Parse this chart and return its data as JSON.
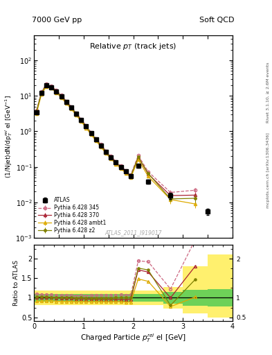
{
  "title_main": "Relative $p_{T}$ (track jets)",
  "top_left_label": "7000 GeV pp",
  "top_right_label": "Soft QCD",
  "right_label_top": "Rivet 3.1.10, ≥ 2.6M events",
  "right_label_bottom": "mcplots.cern.ch [arXiv:1306.3436]",
  "watermark": "ATLAS_2011_I919017",
  "xlabel": "Charged Particle $p^{rel}_{T}$ el [GeV]",
  "ylabel_top": "(1/Njet)dN/dp$^{rel}_{T}$ el [GeV$^{-1}$]",
  "ylabel_bottom": "Ratio to ATLAS",
  "xlim": [
    0,
    4.0
  ],
  "atlas_x": [
    0.05,
    0.15,
    0.25,
    0.35,
    0.45,
    0.55,
    0.65,
    0.75,
    0.85,
    0.95,
    1.05,
    1.15,
    1.25,
    1.35,
    1.45,
    1.55,
    1.65,
    1.75,
    1.85,
    1.95,
    2.1,
    2.3,
    2.75,
    3.5
  ],
  "atlas_y": [
    3.5,
    12.0,
    20.0,
    17.5,
    13.5,
    9.8,
    6.8,
    4.7,
    3.2,
    2.1,
    1.38,
    0.9,
    0.6,
    0.4,
    0.265,
    0.188,
    0.133,
    0.099,
    0.074,
    0.056,
    0.108,
    0.038,
    0.0155,
    0.0055
  ],
  "atlas_yerr_lo": [
    0.3,
    0.6,
    0.8,
    0.7,
    0.55,
    0.35,
    0.27,
    0.17,
    0.12,
    0.08,
    0.055,
    0.035,
    0.024,
    0.016,
    0.011,
    0.008,
    0.006,
    0.005,
    0.004,
    0.003,
    0.012,
    0.005,
    0.003,
    0.001
  ],
  "atlas_yerr_hi": [
    0.3,
    0.6,
    0.8,
    0.7,
    0.55,
    0.35,
    0.27,
    0.17,
    0.12,
    0.08,
    0.055,
    0.035,
    0.024,
    0.016,
    0.011,
    0.008,
    0.006,
    0.005,
    0.004,
    0.003,
    0.012,
    0.005,
    0.003,
    0.001
  ],
  "p345_x": [
    0.05,
    0.15,
    0.25,
    0.35,
    0.45,
    0.55,
    0.65,
    0.75,
    0.85,
    0.95,
    1.05,
    1.15,
    1.25,
    1.35,
    1.45,
    1.55,
    1.65,
    1.75,
    1.85,
    1.95,
    2.1,
    2.3,
    2.75,
    3.25
  ],
  "p345_y": [
    3.85,
    13.0,
    21.5,
    18.8,
    14.3,
    10.4,
    7.2,
    5.0,
    3.35,
    2.22,
    1.45,
    0.95,
    0.635,
    0.425,
    0.282,
    0.2,
    0.142,
    0.106,
    0.079,
    0.06,
    0.21,
    0.073,
    0.019,
    0.022
  ],
  "p345_yerr": [
    0.15,
    0.4,
    0.6,
    0.5,
    0.4,
    0.25,
    0.2,
    0.12,
    0.08,
    0.06,
    0.04,
    0.025,
    0.018,
    0.012,
    0.008,
    0.006,
    0.005,
    0.004,
    0.003,
    0.003,
    0.012,
    0.005,
    0.003,
    0.004
  ],
  "p370_x": [
    0.05,
    0.15,
    0.25,
    0.35,
    0.45,
    0.55,
    0.65,
    0.75,
    0.85,
    0.95,
    1.05,
    1.15,
    1.25,
    1.35,
    1.45,
    1.55,
    1.65,
    1.75,
    1.85,
    1.95,
    2.1,
    2.3,
    2.75,
    3.25
  ],
  "p370_y": [
    3.55,
    12.2,
    20.2,
    17.6,
    13.4,
    9.7,
    6.7,
    4.65,
    3.1,
    2.05,
    1.33,
    0.87,
    0.58,
    0.385,
    0.255,
    0.181,
    0.128,
    0.095,
    0.071,
    0.054,
    0.185,
    0.063,
    0.0155,
    0.016
  ],
  "p370_yerr": [
    0.15,
    0.4,
    0.6,
    0.5,
    0.4,
    0.25,
    0.2,
    0.12,
    0.08,
    0.06,
    0.04,
    0.025,
    0.018,
    0.012,
    0.008,
    0.006,
    0.005,
    0.004,
    0.003,
    0.003,
    0.012,
    0.005,
    0.003,
    0.003
  ],
  "pambt1_x": [
    0.05,
    0.15,
    0.25,
    0.35,
    0.45,
    0.55,
    0.65,
    0.75,
    0.85,
    0.95,
    1.05,
    1.15,
    1.25,
    1.35,
    1.45,
    1.55,
    1.65,
    1.75,
    1.85,
    1.95,
    2.1,
    2.3,
    2.75,
    3.25
  ],
  "pambt1_y": [
    3.2,
    11.0,
    18.5,
    16.2,
    12.3,
    8.9,
    6.15,
    4.27,
    2.87,
    1.9,
    1.24,
    0.81,
    0.54,
    0.36,
    0.238,
    0.169,
    0.12,
    0.089,
    0.066,
    0.05,
    0.16,
    0.054,
    0.012,
    0.009
  ],
  "pambt1_yerr": [
    0.15,
    0.4,
    0.6,
    0.5,
    0.4,
    0.25,
    0.2,
    0.12,
    0.08,
    0.06,
    0.04,
    0.025,
    0.018,
    0.012,
    0.008,
    0.006,
    0.005,
    0.004,
    0.003,
    0.003,
    0.01,
    0.004,
    0.003,
    0.002
  ],
  "pz2_x": [
    0.05,
    0.15,
    0.25,
    0.35,
    0.45,
    0.55,
    0.65,
    0.75,
    0.85,
    0.95,
    1.05,
    1.15,
    1.25,
    1.35,
    1.45,
    1.55,
    1.65,
    1.75,
    1.85,
    1.95,
    2.1,
    2.3,
    2.75,
    3.25
  ],
  "pz2_y": [
    3.6,
    12.3,
    20.4,
    17.8,
    13.6,
    9.9,
    6.85,
    4.75,
    3.18,
    2.1,
    1.37,
    0.895,
    0.597,
    0.398,
    0.264,
    0.187,
    0.133,
    0.099,
    0.074,
    0.056,
    0.19,
    0.065,
    0.0125,
    0.013
  ],
  "pz2_yerr": [
    0.15,
    0.4,
    0.6,
    0.5,
    0.4,
    0.25,
    0.2,
    0.12,
    0.08,
    0.06,
    0.04,
    0.025,
    0.018,
    0.012,
    0.008,
    0.006,
    0.005,
    0.004,
    0.003,
    0.003,
    0.01,
    0.004,
    0.002,
    0.003
  ],
  "color_345": "#cc6680",
  "color_370": "#aa2233",
  "color_ambt1": "#ddaa00",
  "color_z2": "#808000",
  "band_yellow_x": [
    0.0,
    2.0,
    2.6,
    3.0,
    3.5,
    4.0
  ],
  "band_yellow_lo": [
    0.82,
    0.82,
    0.72,
    0.6,
    0.5,
    0.5
  ],
  "band_yellow_hi": [
    1.18,
    1.18,
    1.28,
    1.8,
    2.1,
    2.1
  ],
  "band_green_x": [
    0.0,
    2.0,
    2.6,
    3.0,
    3.5,
    4.0
  ],
  "band_green_lo": [
    0.9,
    0.9,
    0.85,
    0.8,
    0.78,
    0.78
  ],
  "band_green_hi": [
    1.1,
    1.1,
    1.15,
    1.2,
    1.22,
    1.22
  ]
}
